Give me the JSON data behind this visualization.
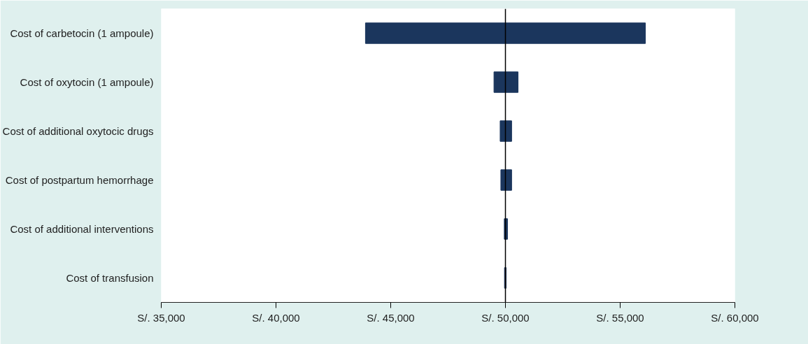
{
  "chart_data": {
    "type": "bar",
    "orientation": "horizontal",
    "categories": [
      "Cost of carbetocin (1 ampoule)",
      "Cost of oxytocin (1 ampoule)",
      "Cost of additional oxytocic drugs",
      "Cost of postpartum hemorrhage",
      "Cost of additional interventions",
      "Cost of transfusion"
    ],
    "base": [
      43900,
      49500,
      49770,
      49800,
      49950,
      49960
    ],
    "values": [
      12200,
      1050,
      500,
      470,
      140,
      70
    ],
    "color": "#1b365d",
    "xlim": [
      35000,
      60000
    ],
    "xticks": [
      {
        "value": 35000,
        "label": "S/. 35,000"
      },
      {
        "value": 40000,
        "label": "S/. 40,000"
      },
      {
        "value": 45000,
        "label": "S/. 45,000"
      },
      {
        "value": 50000,
        "label": "S/. 50,000"
      },
      {
        "value": 55000,
        "label": "S/. 55,000"
      },
      {
        "value": 60000,
        "label": "S/. 60,000"
      }
    ],
    "ref_lines": [
      {
        "axis": "x",
        "value": 50000,
        "color": "#000000"
      }
    ],
    "grid": false
  }
}
